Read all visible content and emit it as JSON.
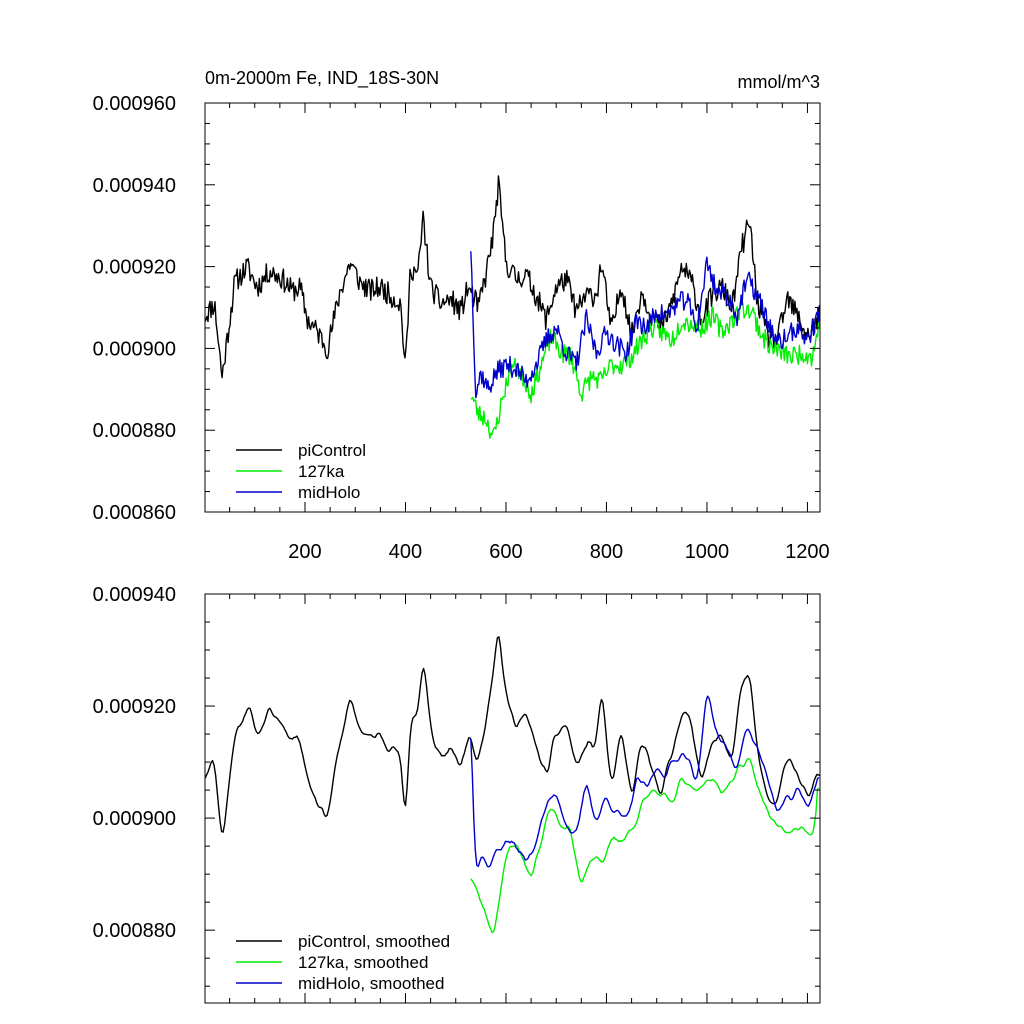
{
  "chart_data": [
    {
      "type": "line",
      "title": "0m-2000m Fe, IND_18S-30N",
      "units": "mmol/m^3",
      "xlabel": "",
      "ylabel": "",
      "xlim": [
        1,
        1225
      ],
      "ylim": [
        0.00086,
        0.00096
      ],
      "x_ticks": [
        200,
        400,
        600,
        800,
        1000,
        1200
      ],
      "y_ticks": [
        "0.000860",
        "0.000880",
        "0.000900",
        "0.000920",
        "0.000940",
        "0.000960"
      ],
      "y_tick_values": [
        0.00086,
        0.00088,
        0.0009,
        0.00092,
        0.00094,
        0.00096
      ],
      "legend_position": "bottom-left",
      "series": [
        {
          "name": "piControl",
          "color": "#000000",
          "anchor_x": [
            1,
            20,
            35,
            60,
            85,
            105,
            130,
            155,
            175,
            190,
            205,
            225,
            245,
            270,
            290,
            310,
            330,
            350,
            370,
            390,
            400,
            410,
            425,
            435,
            450,
            470,
            490,
            510,
            525,
            545,
            560,
            575,
            585,
            600,
            620,
            640,
            660,
            680,
            700,
            720,
            740,
            760,
            780,
            790,
            810,
            830,
            850,
            870,
            890,
            910,
            930,
            950,
            970,
            990,
            1010,
            1030,
            1050,
            1070,
            1085,
            1100,
            1120,
            1140,
            1160,
            1180,
            1200,
            1225
          ],
          "anchor_y": [
            0.000908,
            0.000911,
            0.000893,
            0.000916,
            0.00092,
            0.000915,
            0.000919,
            0.000917,
            0.000914,
            0.000915,
            0.000907,
            0.000904,
            0.0009,
            0.000914,
            0.000921,
            0.000916,
            0.000914,
            0.000915,
            0.000913,
            0.000911,
            0.000895,
            0.00092,
            0.000918,
            0.000932,
            0.000915,
            0.000911,
            0.000912,
            0.000909,
            0.000915,
            0.00091,
            0.000918,
            0.000928,
            0.00094,
            0.000921,
            0.000917,
            0.000918,
            0.000913,
            0.000907,
            0.000915,
            0.000917,
            0.000909,
            0.000913,
            0.000913,
            0.000921,
            0.000904,
            0.000916,
            0.000903,
            0.000914,
            0.000908,
            0.000905,
            0.000911,
            0.00092,
            0.000916,
            0.000907,
            0.000913,
            0.000915,
            0.00091,
            0.000925,
            0.000931,
            0.000912,
            0.000903,
            0.000902,
            0.000912,
            0.000908,
            0.000903,
            0.000908
          ],
          "noise": 2.8e-06,
          "seed": 11,
          "smoothed": false
        },
        {
          "name": "127ka",
          "color": "#00ee00",
          "anchor_x": [
            530,
            545,
            560,
            575,
            590,
            610,
            630,
            650,
            670,
            690,
            710,
            730,
            750,
            770,
            790,
            810,
            830,
            850,
            870,
            890,
            910,
            930,
            950,
            970,
            990,
            1010,
            1030,
            1050,
            1070,
            1090,
            1110,
            1130,
            1150,
            1170,
            1190,
            1210,
            1225
          ],
          "anchor_y": [
            0.000889,
            0.000884,
            0.000883,
            0.000878,
            0.000886,
            0.000896,
            0.000894,
            0.000889,
            0.000896,
            0.000903,
            0.000899,
            0.000898,
            0.000889,
            0.000893,
            0.000892,
            0.000896,
            0.000896,
            0.000898,
            0.000902,
            0.000905,
            0.000904,
            0.000902,
            0.000907,
            0.000906,
            0.000905,
            0.000908,
            0.000904,
            0.000907,
            0.00091,
            0.000909,
            0.000903,
            0.0009,
            0.000899,
            0.000898,
            0.000899,
            0.000898,
            0.000907
          ],
          "noise": 2.5e-06,
          "seed": 23,
          "smoothed": false
        },
        {
          "name": "midHolo",
          "color": "#0000cc",
          "anchor_x": [
            530,
            540,
            550,
            565,
            580,
            600,
            620,
            640,
            660,
            680,
            700,
            720,
            740,
            760,
            780,
            800,
            820,
            840,
            860,
            880,
            900,
            920,
            940,
            960,
            980,
            1000,
            1020,
            1040,
            1060,
            1080,
            1100,
            1120,
            1140,
            1160,
            1180,
            1200,
            1225
          ],
          "anchor_y": [
            0.000925,
            0.000889,
            0.000894,
            0.00089,
            0.000894,
            0.000896,
            0.000895,
            0.000892,
            0.000896,
            0.000902,
            0.000905,
            0.000899,
            0.000896,
            0.000907,
            0.000899,
            0.000904,
            0.000901,
            0.000899,
            0.000907,
            0.000905,
            0.000909,
            0.000908,
            0.000911,
            0.000912,
            0.000905,
            0.000921,
            0.000914,
            0.000913,
            0.000908,
            0.000917,
            0.000913,
            0.000907,
            0.000901,
            0.000903,
            0.000905,
            0.000902,
            0.000909
          ],
          "noise": 2.5e-06,
          "seed": 37,
          "smoothed": false
        }
      ]
    },
    {
      "type": "line",
      "title": "",
      "xlabel": "",
      "ylabel": "",
      "xlim": [
        1,
        1225
      ],
      "ylim": [
        0.000867,
        0.00094
      ],
      "x_ticks": [
        200,
        400,
        600,
        800,
        1000,
        1200
      ],
      "y_ticks": [
        "0.000880",
        "0.000900",
        "0.000920",
        "0.000940"
      ],
      "y_tick_values": [
        0.00088,
        0.0009,
        0.00092,
        0.00094
      ],
      "legend_position": "bottom-left",
      "series": [
        {
          "name": "piControl, smoothed",
          "color": "#000000",
          "anchor_x": [
            1,
            20,
            35,
            60,
            85,
            105,
            130,
            155,
            175,
            190,
            205,
            225,
            245,
            270,
            290,
            310,
            330,
            350,
            370,
            390,
            400,
            410,
            425,
            435,
            450,
            470,
            490,
            510,
            525,
            545,
            560,
            575,
            585,
            600,
            620,
            640,
            660,
            680,
            700,
            720,
            740,
            760,
            780,
            790,
            810,
            830,
            850,
            870,
            890,
            910,
            930,
            950,
            970,
            990,
            1010,
            1030,
            1050,
            1070,
            1085,
            1100,
            1120,
            1140,
            1160,
            1180,
            1200,
            1225
          ],
          "anchor_y": [
            0.000908,
            0.000911,
            0.000895,
            0.000915,
            0.00092,
            0.000915,
            0.000919,
            0.000917,
            0.000914,
            0.000915,
            0.000907,
            0.000903,
            0.0009,
            0.000914,
            0.000921,
            0.000916,
            0.000914,
            0.000915,
            0.000913,
            0.000911,
            0.000898,
            0.000919,
            0.000918,
            0.00093,
            0.000915,
            0.000911,
            0.000912,
            0.000909,
            0.000915,
            0.00091,
            0.000918,
            0.000927,
            0.000935,
            0.000921,
            0.000917,
            0.000918,
            0.000913,
            0.000907,
            0.000915,
            0.000917,
            0.000909,
            0.000913,
            0.000913,
            0.000924,
            0.000904,
            0.000916,
            0.000903,
            0.000914,
            0.000908,
            0.000905,
            0.000911,
            0.00092,
            0.000916,
            0.000907,
            0.000913,
            0.000915,
            0.00091,
            0.000925,
            0.000925,
            0.000912,
            0.000903,
            0.000902,
            0.000912,
            0.000908,
            0.000903,
            0.000908
          ],
          "noise": 1.8e-06,
          "seed": 11,
          "smoothed": true
        },
        {
          "name": "127ka, smoothed",
          "color": "#00ee00",
          "anchor_x": [
            530,
            545,
            560,
            575,
            590,
            610,
            630,
            650,
            670,
            690,
            710,
            730,
            750,
            770,
            790,
            810,
            830,
            850,
            870,
            890,
            910,
            930,
            950,
            970,
            990,
            1010,
            1030,
            1050,
            1070,
            1090,
            1110,
            1130,
            1150,
            1170,
            1190,
            1210,
            1225
          ],
          "anchor_y": [
            0.00089,
            0.000886,
            0.000883,
            0.000879,
            0.000888,
            0.000896,
            0.000894,
            0.000889,
            0.000896,
            0.000903,
            0.000899,
            0.000898,
            0.000887,
            0.000893,
            0.000892,
            0.000896,
            0.000896,
            0.000898,
            0.000902,
            0.000905,
            0.000904,
            0.000902,
            0.000907,
            0.000906,
            0.000905,
            0.000908,
            0.000904,
            0.000907,
            0.00091,
            0.000909,
            0.000903,
            0.0009,
            0.000899,
            0.000898,
            0.000899,
            0.000896,
            0.000908
          ],
          "noise": 1.6e-06,
          "seed": 23,
          "smoothed": true
        },
        {
          "name": "midHolo, smoothed",
          "color": "#0000cc",
          "anchor_x": [
            530,
            540,
            550,
            565,
            580,
            600,
            620,
            640,
            660,
            680,
            700,
            720,
            740,
            760,
            780,
            800,
            820,
            840,
            860,
            880,
            900,
            920,
            940,
            960,
            980,
            1000,
            1020,
            1040,
            1060,
            1080,
            1100,
            1120,
            1140,
            1160,
            1180,
            1200,
            1225
          ],
          "anchor_y": [
            0.000915,
            0.00089,
            0.000894,
            0.000891,
            0.000894,
            0.000896,
            0.000895,
            0.000892,
            0.000896,
            0.000902,
            0.000905,
            0.000899,
            0.000896,
            0.000907,
            0.000899,
            0.000904,
            0.000901,
            0.000899,
            0.000907,
            0.000905,
            0.000909,
            0.000908,
            0.000911,
            0.000912,
            0.000905,
            0.000924,
            0.000914,
            0.000913,
            0.000908,
            0.000917,
            0.000913,
            0.000907,
            0.000901,
            0.000903,
            0.000905,
            0.000902,
            0.000908
          ],
          "noise": 1.6e-06,
          "seed": 37,
          "smoothed": true
        }
      ]
    }
  ]
}
